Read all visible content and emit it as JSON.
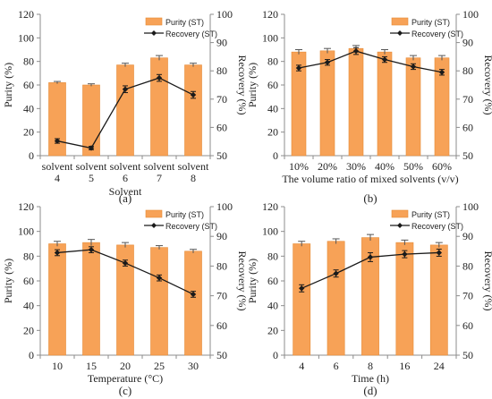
{
  "colors": {
    "bar_fill": "#f7a257",
    "bar_stroke": "#e58a36",
    "line": "#1a1a1a",
    "axis": "#8c8c8c"
  },
  "chart_data": [
    {
      "type": "bar",
      "panel_label": "(a)",
      "xlabel": "Solvent",
      "ylabel": "Purity (%)",
      "y2label": "Recovery (%)",
      "categories": [
        [
          "solvent",
          "4"
        ],
        [
          "solvent",
          "5"
        ],
        [
          "solvent",
          "6"
        ],
        [
          "solvent",
          "7"
        ],
        [
          "solvent",
          "8"
        ]
      ],
      "ylim": [
        0,
        120
      ],
      "yticks": [
        0,
        20,
        40,
        60,
        80,
        100,
        120
      ],
      "y2lim": [
        50,
        100
      ],
      "y2ticks": [
        50,
        60,
        70,
        80,
        90,
        100
      ],
      "series": [
        {
          "name": "Purity (ST)",
          "type": "bar",
          "axis": "left",
          "values": [
            62,
            60,
            77,
            83,
            77
          ],
          "errors": [
            1.0,
            1.0,
            1.5,
            2.0,
            1.5
          ]
        },
        {
          "name": "Recovery (ST)",
          "type": "line",
          "axis": "right",
          "values": [
            55.2,
            52.7,
            73.5,
            77.5,
            71.5
          ],
          "errors": [
            0.8,
            0.6,
            1.2,
            1.2,
            1.2
          ]
        }
      ],
      "legend": "top-right"
    },
    {
      "type": "bar",
      "panel_label": "(b)",
      "xlabel": "The volume ratio of mixed solvents (v/v)",
      "ylabel": "Purity (%)",
      "y2label": "Recovery (%)",
      "categories": [
        [
          "10%"
        ],
        [
          "20%"
        ],
        [
          "30%"
        ],
        [
          "40%"
        ],
        [
          "50%"
        ],
        [
          "60%"
        ]
      ],
      "ylim": [
        0,
        120
      ],
      "yticks": [
        0,
        20,
        40,
        60,
        80,
        100,
        120
      ],
      "y2lim": [
        50,
        100
      ],
      "y2ticks": [
        50,
        60,
        70,
        80,
        90,
        100
      ],
      "series": [
        {
          "name": "Purity (ST)",
          "type": "bar",
          "axis": "left",
          "values": [
            88,
            89,
            91,
            88,
            83,
            83
          ],
          "errors": [
            2.0,
            2.0,
            2.5,
            2.0,
            2.0,
            2.0
          ]
        },
        {
          "name": "Recovery (ST)",
          "type": "line",
          "axis": "right",
          "values": [
            81,
            83,
            87,
            84,
            81.5,
            79.5
          ],
          "errors": [
            1.0,
            1.0,
            1.2,
            1.0,
            1.0,
            1.0
          ]
        }
      ],
      "legend": "top-right"
    },
    {
      "type": "bar",
      "panel_label": "(c)",
      "xlabel": "Temperature (°C)",
      "ylabel": "Purity (%)",
      "y2label": "Recovery (%)",
      "categories": [
        [
          "10"
        ],
        [
          "15"
        ],
        [
          "20"
        ],
        [
          "25"
        ],
        [
          "30"
        ]
      ],
      "ylim": [
        0,
        120
      ],
      "yticks": [
        0,
        20,
        40,
        60,
        80,
        100,
        120
      ],
      "y2lim": [
        50,
        100
      ],
      "y2ticks": [
        50,
        60,
        70,
        80,
        90,
        100
      ],
      "series": [
        {
          "name": "Purity (ST)",
          "type": "bar",
          "axis": "left",
          "values": [
            90,
            91,
            89,
            87,
            84
          ],
          "errors": [
            2.0,
            2.5,
            2.0,
            1.5,
            1.5
          ]
        },
        {
          "name": "Recovery (ST)",
          "type": "line",
          "axis": "right",
          "values": [
            84.5,
            85.5,
            81,
            76,
            70.5
          ],
          "errors": [
            1.0,
            1.0,
            1.0,
            1.0,
            1.0
          ]
        }
      ],
      "legend": "top-right"
    },
    {
      "type": "bar",
      "panel_label": "(d)",
      "xlabel": "Time (h)",
      "ylabel": "Purity (%)",
      "y2label": "Recovery (%)",
      "categories": [
        [
          "4"
        ],
        [
          "6"
        ],
        [
          "8"
        ],
        [
          "16"
        ],
        [
          "24"
        ]
      ],
      "ylim": [
        0,
        120
      ],
      "yticks": [
        0,
        20,
        40,
        60,
        80,
        100,
        120
      ],
      "y2lim": [
        50,
        100
      ],
      "y2ticks": [
        50,
        60,
        70,
        80,
        90,
        100
      ],
      "series": [
        {
          "name": "Purity (ST)",
          "type": "bar",
          "axis": "left",
          "values": [
            90,
            92,
            95,
            91,
            89
          ],
          "errors": [
            2.0,
            2.0,
            2.5,
            2.0,
            2.0
          ]
        },
        {
          "name": "Recovery (ST)",
          "type": "line",
          "axis": "right",
          "values": [
            72.5,
            77.5,
            83,
            84,
            84.5
          ],
          "errors": [
            1.2,
            1.2,
            1.5,
            1.2,
            1.2
          ]
        }
      ],
      "legend": "top-right"
    }
  ]
}
